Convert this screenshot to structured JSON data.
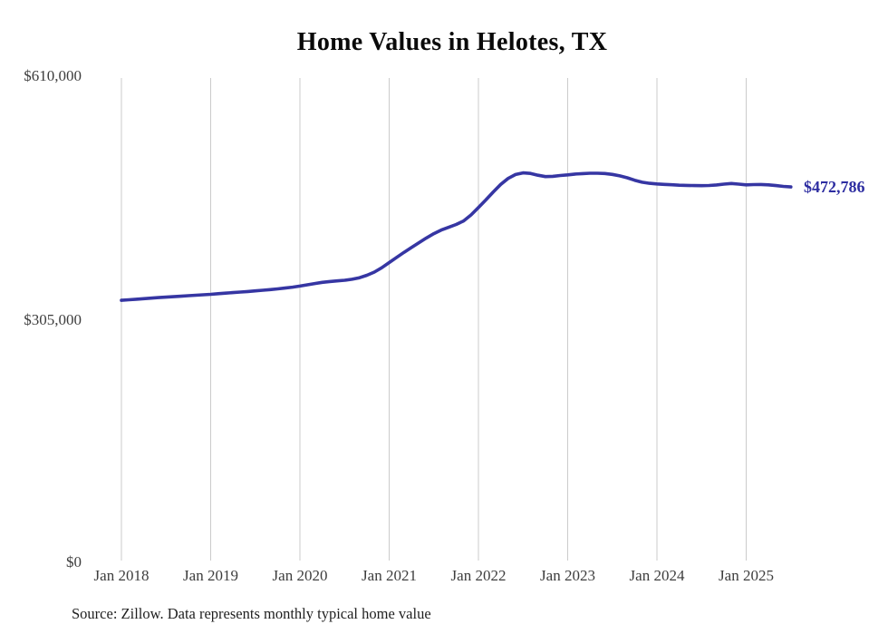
{
  "title": "Home Values in Helotes, TX",
  "end_label": "$472,786",
  "source": "Source: Zillow. Data represents monthly typical home value",
  "colors": {
    "line": "#3636a3",
    "end_label_text": "#2d2da1",
    "grid": "#cbcbcb",
    "axis_text": "#3d3d3d",
    "title_text": "#0a0a0a"
  },
  "y_axis": {
    "ticks": [
      "$610,000",
      "$305,000",
      "$0"
    ]
  },
  "x_axis": {
    "ticks": [
      "Jan 2018",
      "Jan 2019",
      "Jan 2020",
      "Jan 2021",
      "Jan 2022",
      "Jan 2023",
      "Jan 2024",
      "Jan 2025"
    ]
  },
  "chart_data": {
    "type": "line",
    "title": "Home Values in Helotes, TX",
    "x_unit": "month",
    "x_start": "2018-01",
    "x_end": "2025-07",
    "x_tick_labels": [
      "Jan 2018",
      "Jan 2019",
      "Jan 2020",
      "Jan 2021",
      "Jan 2022",
      "Jan 2023",
      "Jan 2024",
      "Jan 2025"
    ],
    "ylim": [
      0,
      610000
    ],
    "y_tick_values": [
      0,
      305000,
      610000
    ],
    "y_tick_labels": [
      "$0",
      "$305,000",
      "$610,000"
    ],
    "grid": "vertical-only",
    "legend": "none",
    "series": [
      {
        "name": "Typical home value",
        "values": [
          330000,
          330700,
          331400,
          332100,
          332800,
          333400,
          334000,
          334600,
          335200,
          335800,
          336400,
          337000,
          337600,
          338300,
          339000,
          339700,
          340400,
          341100,
          341900,
          342700,
          343500,
          344400,
          345400,
          346600,
          348000,
          349600,
          351200,
          352600,
          353700,
          354500,
          355300,
          356500,
          358500,
          361500,
          365500,
          371000,
          377500,
          384000,
          390500,
          396500,
          402500,
          408500,
          414000,
          418500,
          422000,
          425500,
          430000,
          437500,
          446900,
          456500,
          466500,
          476000,
          483500,
          488500,
          490500,
          489800,
          487500,
          485800,
          486200,
          487200,
          488000,
          489000,
          489600,
          490000,
          490100,
          489700,
          488600,
          486800,
          484300,
          481300,
          478800,
          477400,
          476600,
          476000,
          475500,
          475000,
          474700,
          474500,
          474400,
          474600,
          475300,
          476400,
          477200,
          476300,
          475400,
          475800,
          475900,
          475400,
          474500,
          473500,
          472786
        ]
      }
    ],
    "end_annotation": {
      "text": "$472,786",
      "value": 472786
    },
    "source": "Source: Zillow. Data represents monthly typical home value"
  }
}
